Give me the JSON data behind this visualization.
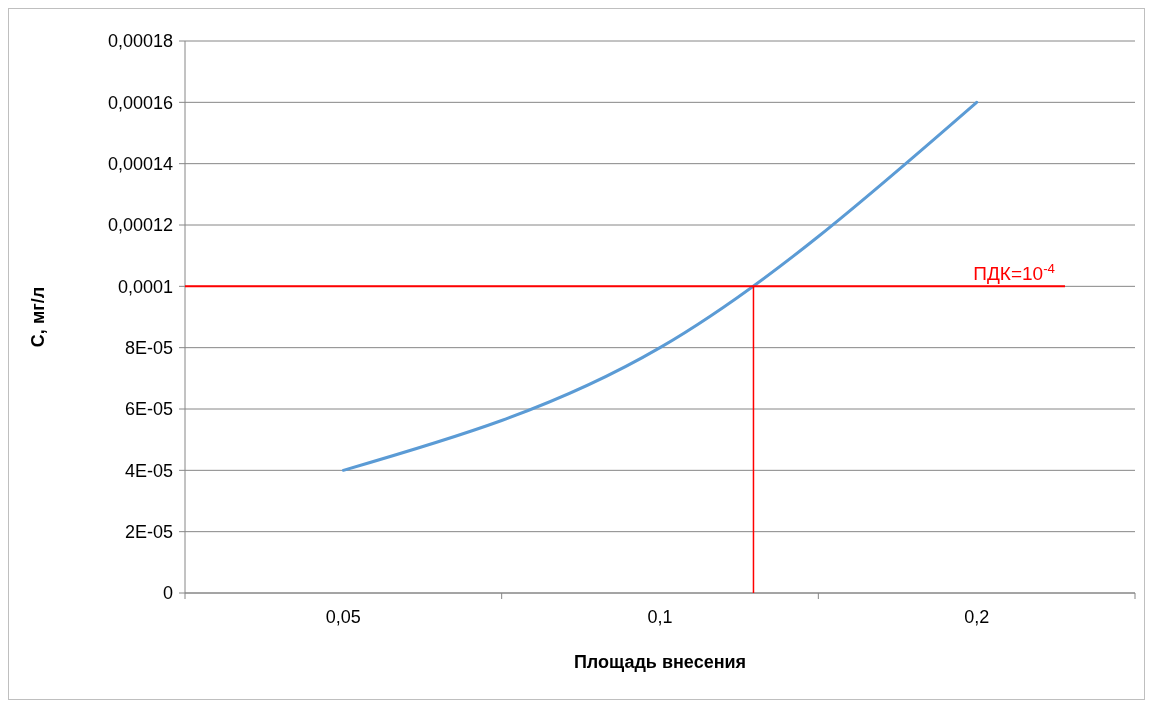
{
  "chart_data": {
    "type": "line",
    "xlabel": "Площадь внесения",
    "ylabel": "C, мг/л",
    "categories": [
      "0,05",
      "0,1",
      "0,2"
    ],
    "series": [
      {
        "color": "#5b9bd5",
        "values": [
          4e-05,
          8e-05,
          0.00016
        ]
      }
    ],
    "ylim": [
      0,
      0.00018
    ],
    "yticks": [
      0,
      {
        "value": 2e-05,
        "label": "2E-05"
      },
      {
        "value": 4e-05,
        "label": "4E-05"
      },
      {
        "value": 6e-05,
        "label": "6E-05"
      },
      {
        "value": 8e-05,
        "label": "8E-05"
      },
      {
        "value": 0.0001,
        "label": "0,0001"
      },
      {
        "value": 0.00012,
        "label": "0,00012"
      },
      {
        "value": 0.00014,
        "label": "0,00014"
      },
      {
        "value": 0.00016,
        "label": "0,00016"
      },
      {
        "value": 0.00018,
        "label": "0,00018"
      }
    ],
    "grid": "y",
    "marker": "none",
    "line_style": "solid",
    "ref_lines": [
      {
        "axis": "y",
        "value": 0.0001,
        "color": "#ff0000"
      }
    ],
    "annotations": [
      "ПДК=10$^{-4}$"
    ]
  }
}
